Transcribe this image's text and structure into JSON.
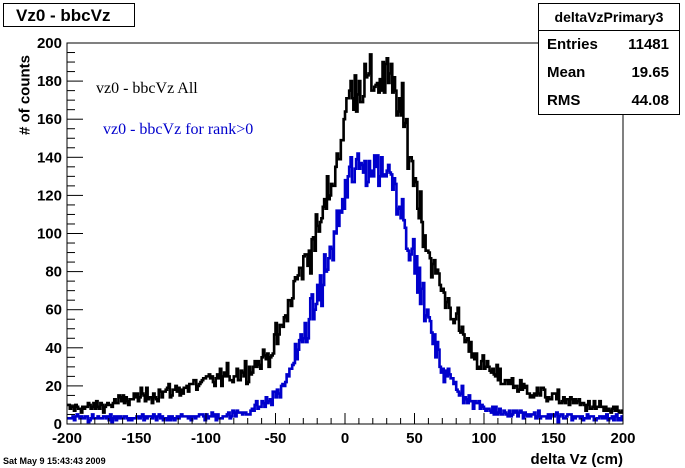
{
  "title": "Vz0 - bbcVz",
  "stats": {
    "name": "deltaVzPrimary3",
    "rows": [
      {
        "label": "Entries",
        "value": "11481"
      },
      {
        "label": "Mean",
        "value": "19.65"
      },
      {
        "label": "RMS",
        "value": "44.08"
      }
    ]
  },
  "footer": {
    "timestamp": "Sat May  9 15:43:43 2009"
  },
  "chart_data": {
    "type": "line",
    "ylabel": "# of counts",
    "xlabel": "delta Vz (cm)",
    "xlim": [
      -200,
      200
    ],
    "ylim": [
      0,
      200
    ],
    "xticks": [
      -200,
      -150,
      -100,
      -50,
      0,
      50,
      100,
      150,
      200
    ],
    "yticks": [
      0,
      20,
      40,
      60,
      80,
      100,
      120,
      140,
      160,
      180,
      200
    ],
    "grid": false,
    "bin_width": 1,
    "series": [
      {
        "name": "vz0 - bbcVz All",
        "color": "#000000",
        "shape": [
          [
            -200,
            8
          ],
          [
            -170,
            10
          ],
          [
            -150,
            14
          ],
          [
            -120,
            18
          ],
          [
            -90,
            24
          ],
          [
            -70,
            28
          ],
          [
            -55,
            36
          ],
          [
            -45,
            50
          ],
          [
            -35,
            75
          ],
          [
            -20,
            100
          ],
          [
            -10,
            125
          ],
          [
            -5,
            140
          ],
          [
            0,
            160
          ],
          [
            5,
            178
          ],
          [
            10,
            178
          ],
          [
            20,
            180
          ],
          [
            30,
            182
          ],
          [
            35,
            175
          ],
          [
            40,
            165
          ],
          [
            45,
            150
          ],
          [
            50,
            130
          ],
          [
            55,
            110
          ],
          [
            60,
            90
          ],
          [
            70,
            70
          ],
          [
            80,
            55
          ],
          [
            90,
            40
          ],
          [
            100,
            30
          ],
          [
            110,
            25
          ],
          [
            130,
            18
          ],
          [
            150,
            14
          ],
          [
            175,
            10
          ],
          [
            200,
            6
          ]
        ]
      },
      {
        "name": "vz0 - bbcVz for rank>0",
        "color": "#0000cc",
        "shape": [
          [
            -200,
            3
          ],
          [
            -150,
            3
          ],
          [
            -100,
            4
          ],
          [
            -80,
            5
          ],
          [
            -65,
            8
          ],
          [
            -55,
            12
          ],
          [
            -45,
            18
          ],
          [
            -40,
            28
          ],
          [
            -30,
            45
          ],
          [
            -20,
            65
          ],
          [
            -10,
            90
          ],
          [
            -5,
            105
          ],
          [
            0,
            120
          ],
          [
            5,
            132
          ],
          [
            15,
            135
          ],
          [
            25,
            135
          ],
          [
            35,
            130
          ],
          [
            40,
            115
          ],
          [
            45,
            100
          ],
          [
            50,
            85
          ],
          [
            55,
            70
          ],
          [
            60,
            55
          ],
          [
            65,
            40
          ],
          [
            70,
            30
          ],
          [
            80,
            20
          ],
          [
            90,
            12
          ],
          [
            100,
            8
          ],
          [
            120,
            6
          ],
          [
            150,
            4
          ],
          [
            200,
            3
          ]
        ]
      }
    ]
  }
}
